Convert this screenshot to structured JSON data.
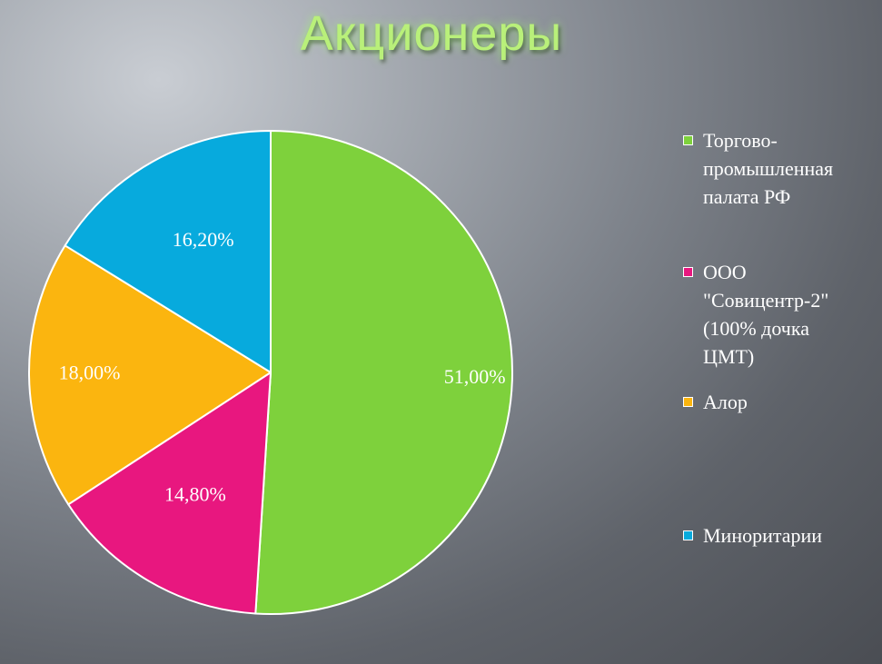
{
  "title": "Акционеры",
  "chart_data": {
    "type": "pie",
    "title": "Акционеры",
    "legend_position": "right",
    "slices": [
      {
        "name": "Торгово-\nпромышленная\nпалата РФ",
        "value": 51.0,
        "label": "51,00%",
        "color": "#7ed13c"
      },
      {
        "name": "ООО\n\"Совицентр-2\"\n(100% дочка\nЦМТ)",
        "value": 14.8,
        "label": "14,80%",
        "color": "#e8177f"
      },
      {
        "name": "Алор",
        "value": 18.0,
        "label": "18,00%",
        "color": "#fbb50f"
      },
      {
        "name": "Миноритарии",
        "value": 16.2,
        "label": "16,20%",
        "color": "#07aadd"
      }
    ]
  }
}
